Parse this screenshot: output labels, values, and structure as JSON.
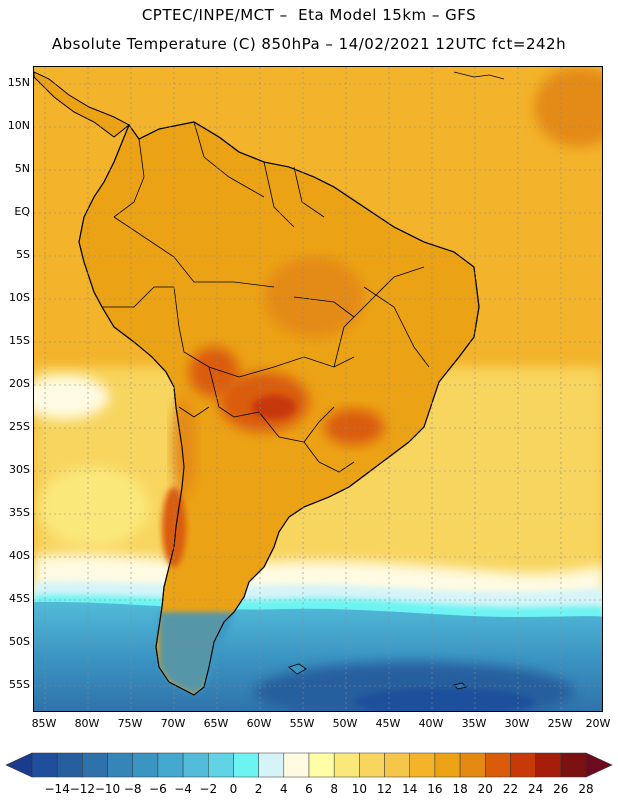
{
  "title_line1": "CPTEC/INPE/MCT –  Eta Model 15km – GFS",
  "title_line2": "Absolute Temperature (C) 850hPa – 14/02/2021 12UTC fct=242h",
  "lat_labels": [
    "15N",
    "10N",
    "5N",
    "EQ",
    "5S",
    "10S",
    "15S",
    "20S",
    "25S",
    "30S",
    "35S",
    "40S",
    "45S",
    "50S",
    "55S"
  ],
  "lon_labels": [
    "85W",
    "80W",
    "75W",
    "70W",
    "65W",
    "60W",
    "55W",
    "50W",
    "45W",
    "40W",
    "35W",
    "30W",
    "25W",
    "20W"
  ],
  "colorbar": {
    "labels": [
      "-14",
      "-12",
      "-10",
      "-8",
      "-6",
      "-4",
      "-2",
      "0",
      "2",
      "4",
      "6",
      "8",
      "10",
      "12",
      "14",
      "16",
      "18",
      "20",
      "22",
      "24",
      "26",
      "28"
    ],
    "below_color": "#1b3b8c",
    "above_color": "#6e0a1e",
    "colors": [
      "#1f4f9c",
      "#275f9e",
      "#2f72ab",
      "#3585b8",
      "#3b95c3",
      "#45a8cf",
      "#52bbd9",
      "#60d3e6",
      "#6df4f2",
      "#d5f4f8",
      "#fffbe3",
      "#fffea6",
      "#fbe87a",
      "#f8d55e",
      "#f5c64a",
      "#f3b32b",
      "#eca215",
      "#e48a12",
      "#da5b0a",
      "#c8390a",
      "#a61e0a",
      "#7b1212"
    ]
  },
  "colors": {
    "ocean_north": "#f3b32b",
    "land": "#eca215",
    "land_hot": "#da5b0a",
    "ocean_mid": "#f8d55e",
    "cool_pale": "#fffbe3",
    "cold_cyan": "#6df4f2",
    "cold_teal": "#45a8cf",
    "cold_blue": "#2f72ab"
  }
}
